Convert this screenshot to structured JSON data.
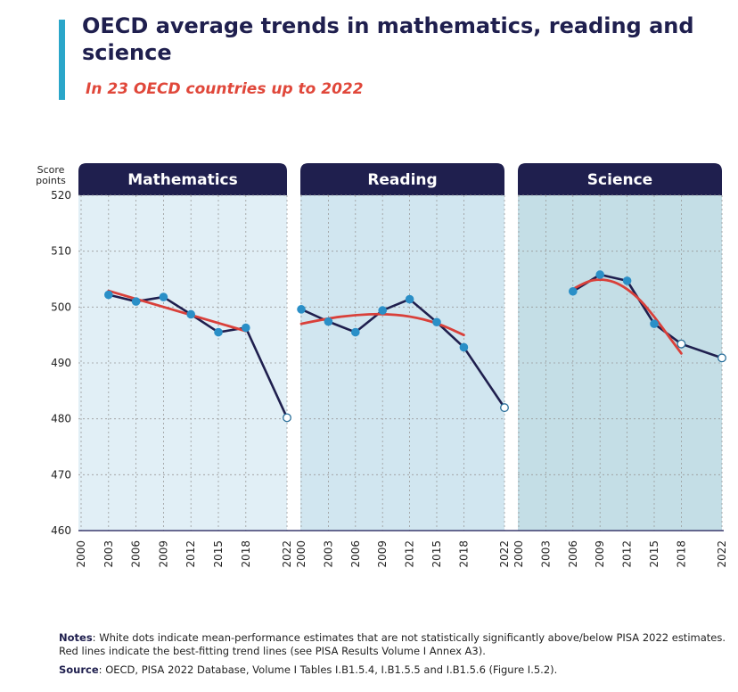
{
  "header": {
    "title": "OECD average trends in mathematics, reading and science",
    "subtitle": "In 23 OECD countries up to 2022"
  },
  "colors": {
    "navy": "#1f1f4e",
    "red": "#d9403a",
    "dot": "#2a8fc7",
    "panel_math": "#e1eff6",
    "panel_reading": "#d1e6f0",
    "panel_science": "#c4dee6",
    "grid": "#9a9a9a",
    "baseline": "#3a3a6e"
  },
  "chart_data": {
    "type": "line",
    "ylabel": "Score points",
    "ylim": [
      460,
      520
    ],
    "yticks": [
      460,
      470,
      480,
      490,
      500,
      510,
      520
    ],
    "x_ticks": [
      "2000",
      "2003",
      "2006",
      "2009",
      "2012",
      "2015",
      "2018",
      "2022"
    ],
    "panels": [
      {
        "name": "Mathematics",
        "points": [
          {
            "x": "2003",
            "y": 502.2,
            "significant": true
          },
          {
            "x": "2006",
            "y": 501.0,
            "significant": true
          },
          {
            "x": "2009",
            "y": 501.8,
            "significant": true
          },
          {
            "x": "2012",
            "y": 498.7,
            "significant": true
          },
          {
            "x": "2015",
            "y": 495.5,
            "significant": true
          },
          {
            "x": "2018",
            "y": 496.3,
            "significant": true
          },
          {
            "x": "2022",
            "y": 480.2,
            "significant": false
          }
        ],
        "trend": [
          {
            "x": "2003",
            "y": 502.9
          },
          {
            "x": "2018",
            "y": 495.7
          }
        ]
      },
      {
        "name": "Reading",
        "points": [
          {
            "x": "2000",
            "y": 499.6,
            "significant": true
          },
          {
            "x": "2003",
            "y": 497.4,
            "significant": true
          },
          {
            "x": "2006",
            "y": 495.5,
            "significant": true
          },
          {
            "x": "2009",
            "y": 499.4,
            "significant": true
          },
          {
            "x": "2012",
            "y": 501.4,
            "significant": true
          },
          {
            "x": "2015",
            "y": 497.3,
            "significant": true
          },
          {
            "x": "2018",
            "y": 492.8,
            "significant": true
          },
          {
            "x": "2022",
            "y": 482.0,
            "significant": false
          }
        ],
        "trend": [
          {
            "x": "2000",
            "y": 497.0
          },
          {
            "x": "2003",
            "y": 498.0
          },
          {
            "x": "2006",
            "y": 498.6
          },
          {
            "x": "2009",
            "y": 498.8
          },
          {
            "x": "2012",
            "y": 498.4
          },
          {
            "x": "2015",
            "y": 497.2
          },
          {
            "x": "2018",
            "y": 495.0
          }
        ]
      },
      {
        "name": "Science",
        "points": [
          {
            "x": "2006",
            "y": 502.8,
            "significant": true
          },
          {
            "x": "2009",
            "y": 505.8,
            "significant": true
          },
          {
            "x": "2012",
            "y": 504.7,
            "significant": true
          },
          {
            "x": "2015",
            "y": 497.0,
            "significant": true
          },
          {
            "x": "2018",
            "y": 493.4,
            "significant": false
          },
          {
            "x": "2022",
            "y": 490.9,
            "significant": false
          }
        ],
        "trend": [
          {
            "x": "2006",
            "y": 503.2
          },
          {
            "x": "2007.5",
            "y": 504.6
          },
          {
            "x": "2009",
            "y": 505.0
          },
          {
            "x": "2010.5",
            "y": 504.6
          },
          {
            "x": "2012",
            "y": 503.3
          },
          {
            "x": "2013.5",
            "y": 501.2
          },
          {
            "x": "2015",
            "y": 498.3
          },
          {
            "x": "2016.5",
            "y": 495.0
          },
          {
            "x": "2018",
            "y": 491.7
          }
        ]
      }
    ]
  },
  "notes": {
    "notes_label": "Notes",
    "notes_text": ": White dots indicate mean-performance estimates that are not statistically significantly above/below PISA 2022 estimates. Red lines indicate the best-fitting trend lines (see PISA Results Volume I Annex A3).",
    "source_label": "Source",
    "source_text": ": OECD, PISA 2022 Database, Volume I Tables I.B1.5.4, I.B1.5.5 and I.B1.5.6 (Figure I.5.2)."
  }
}
